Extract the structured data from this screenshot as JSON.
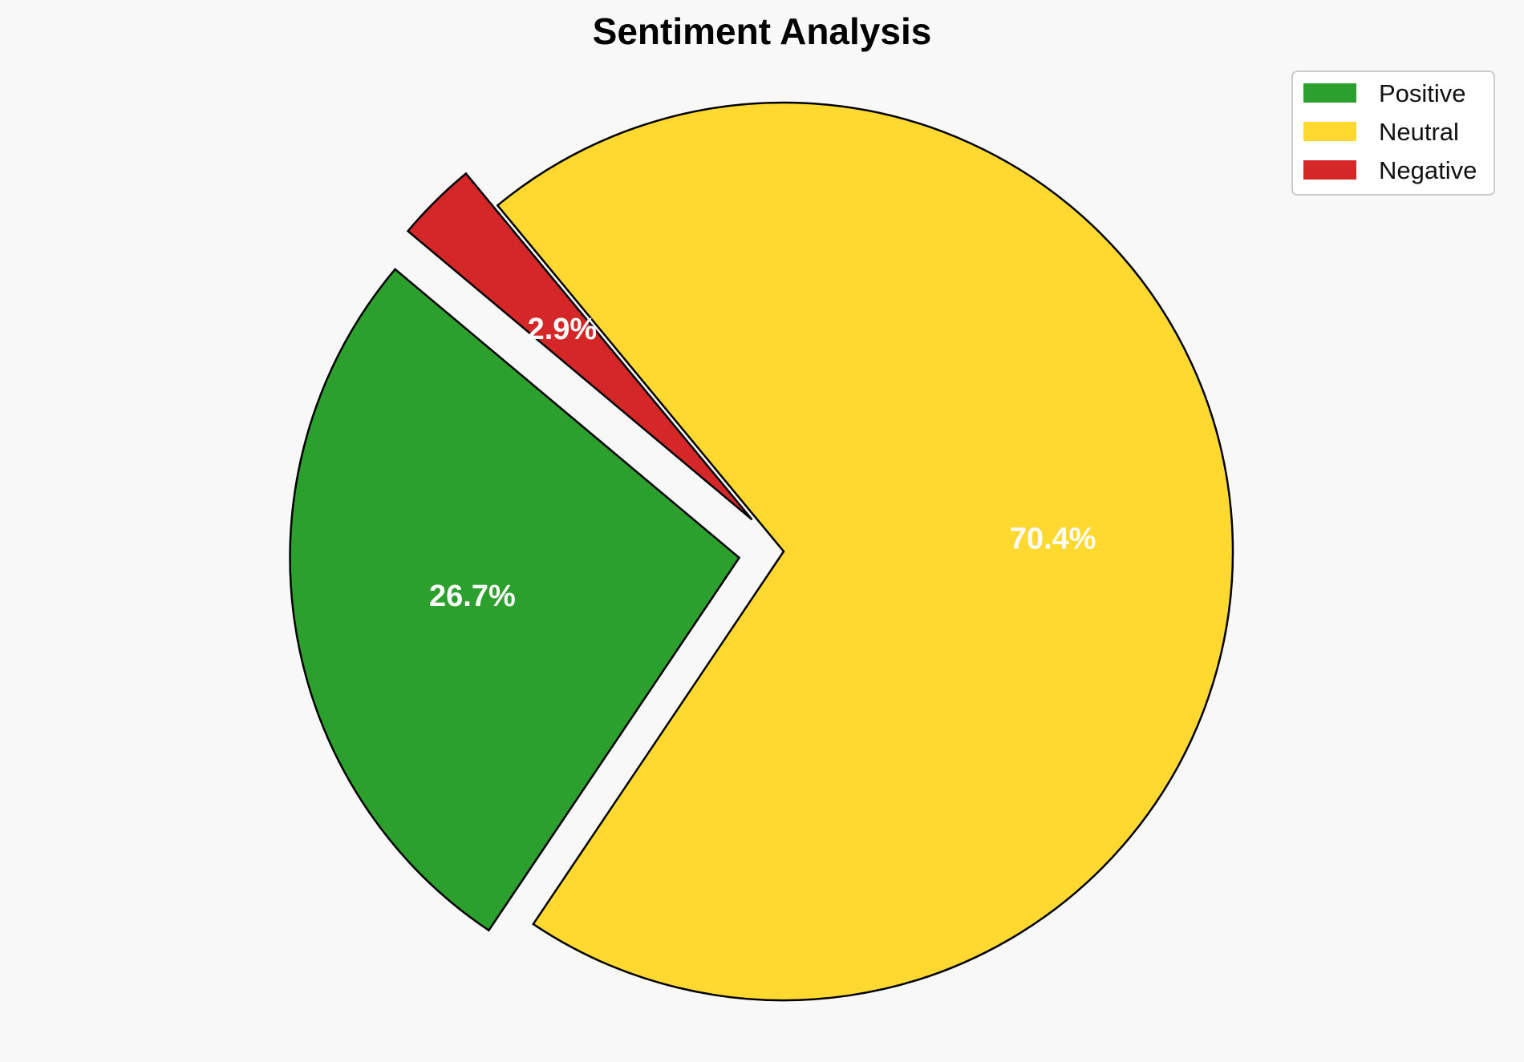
{
  "chart_data": {
    "type": "pie",
    "title": "Sentiment Analysis",
    "labels": [
      "Positive",
      "Neutral",
      "Negative"
    ],
    "values": [
      26.7,
      70.4,
      2.9
    ],
    "value_labels": [
      "26.7%",
      "70.4%",
      "2.9%"
    ],
    "colors": [
      "#2ca02c",
      "#ffd92f",
      "#d62728"
    ],
    "exploded": [
      true,
      false,
      true
    ],
    "start_angle_deg": 140,
    "legend_placement": "top-right"
  }
}
